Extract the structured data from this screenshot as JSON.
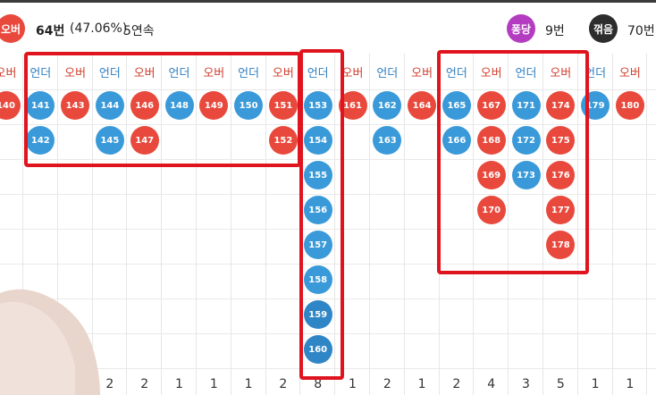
{
  "stats": {
    "over_badge": "오버",
    "over_count": "64번",
    "over_pct": "(47.06%)",
    "over_streak": "5연속",
    "pung_badge": "퐁당",
    "pung_count": "9번",
    "gyeok_badge": "꺾음",
    "gyeok_count": "70번"
  },
  "colors": {
    "under": "#3a9ad9",
    "over": "#e8493c",
    "highlight": "#e0141e"
  },
  "columns": [
    {
      "label": "오버",
      "type": "over",
      "balls": [
        "140"
      ],
      "count": ""
    },
    {
      "label": "언더",
      "type": "under",
      "balls": [
        "141",
        "142"
      ],
      "count": ""
    },
    {
      "label": "오버",
      "type": "over",
      "balls": [
        "143"
      ],
      "count": ""
    },
    {
      "label": "언더",
      "type": "under",
      "balls": [
        "144",
        "145"
      ],
      "count": "2"
    },
    {
      "label": "오버",
      "type": "over",
      "balls": [
        "146",
        "147"
      ],
      "count": "2"
    },
    {
      "label": "언더",
      "type": "under",
      "balls": [
        "148"
      ],
      "count": "1"
    },
    {
      "label": "오버",
      "type": "over",
      "balls": [
        "149"
      ],
      "count": "1"
    },
    {
      "label": "언더",
      "type": "under",
      "balls": [
        "150"
      ],
      "count": "1"
    },
    {
      "label": "오버",
      "type": "over",
      "balls": [
        "151",
        "152"
      ],
      "count": "2"
    },
    {
      "label": "언더",
      "type": "under",
      "balls": [
        "153",
        "154",
        "155",
        "156",
        "157",
        "158",
        "159",
        "160"
      ],
      "count": "8"
    },
    {
      "label": "오버",
      "type": "over",
      "balls": [
        "161"
      ],
      "count": "1"
    },
    {
      "label": "언더",
      "type": "under",
      "balls": [
        "162",
        "163"
      ],
      "count": "2"
    },
    {
      "label": "오버",
      "type": "over",
      "balls": [
        "164"
      ],
      "count": "1"
    },
    {
      "label": "언더",
      "type": "under",
      "balls": [
        "165",
        "166"
      ],
      "count": "2"
    },
    {
      "label": "오버",
      "type": "over",
      "balls": [
        "167",
        "168",
        "169",
        "170"
      ],
      "count": "4"
    },
    {
      "label": "언더",
      "type": "under",
      "balls": [
        "171",
        "172",
        "173"
      ],
      "count": "3"
    },
    {
      "label": "오버",
      "type": "over",
      "balls": [
        "174",
        "175",
        "176",
        "177",
        "178"
      ],
      "count": "5"
    },
    {
      "label": "언더",
      "type": "under",
      "balls": [
        "179"
      ],
      "count": "1"
    },
    {
      "label": "오버",
      "type": "over",
      "balls": [
        "180"
      ],
      "count": "1"
    }
  ]
}
